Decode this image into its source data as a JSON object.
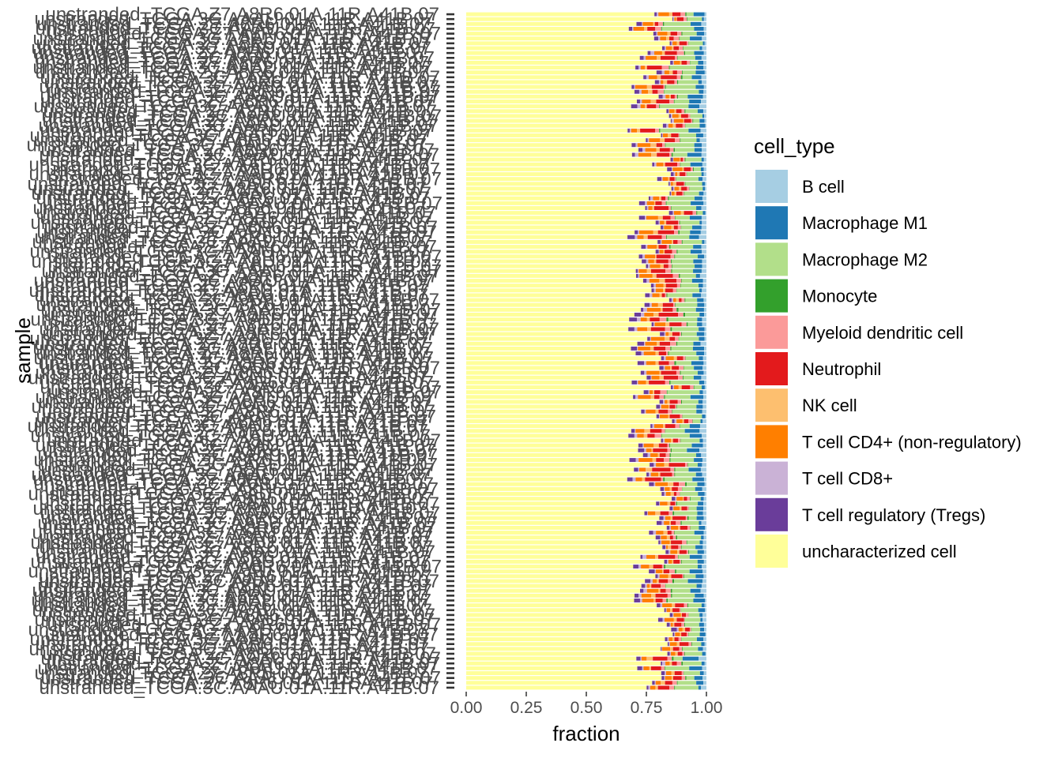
{
  "chart_data": {
    "type": "bar",
    "orientation": "horizontal",
    "stacked": true,
    "xlabel": "fraction",
    "ylabel": "sample",
    "xlim": [
      0,
      1
    ],
    "x_ticks": [
      "0.00",
      "0.25",
      "0.50",
      "0.75",
      "1.00"
    ],
    "y_tick_labels_visible": [
      "unstranded_TCGA.Z7.A8R6.01A.11R.A41B.07",
      "unstranded_TCGA.3C.AAAU.01A.11R.A41B.07"
    ],
    "sample_count": 140,
    "sample_note": "~140 samples; individual sample labels overlap and are illegible except the first and last",
    "legend": {
      "title": "cell_type",
      "position": "right",
      "entries": [
        {
          "label": "B cell",
          "color": "#A6CEE3"
        },
        {
          "label": "Macrophage M1",
          "color": "#1F78B4"
        },
        {
          "label": "Macrophage M2",
          "color": "#B2DF8A"
        },
        {
          "label": "Monocyte",
          "color": "#33A02C"
        },
        {
          "label": "Myeloid dendritic cell",
          "color": "#FB9A99"
        },
        {
          "label": "Neutrophil",
          "color": "#E31A1C"
        },
        {
          "label": "NK cell",
          "color": "#FDBF6F"
        },
        {
          "label": "T cell CD4+ (non-regulatory)",
          "color": "#FF7F00"
        },
        {
          "label": "T cell CD8+",
          "color": "#CAB2D6"
        },
        {
          "label": "T cell regulatory (Tregs)",
          "color": "#6A3D9A"
        },
        {
          "label": "uncharacterized cell",
          "color": "#FFFF99"
        }
      ]
    },
    "series_order_left_to_right": [
      "uncharacterized cell",
      "T cell regulatory (Tregs)",
      "T cell CD8+",
      "T cell CD4+ (non-regulatory)",
      "NK cell",
      "Neutrophil",
      "Myeloid dendritic cell",
      "Monocyte",
      "Macrophage M2",
      "Macrophage M1",
      "B cell"
    ],
    "typical_fractions": {
      "uncharacterized cell": 0.8,
      "T cell regulatory (Tregs)": 0.012,
      "T cell CD8+": 0.006,
      "T cell CD4+ (non-regulatory)": 0.025,
      "NK cell": 0.01,
      "Neutrophil": 0.03,
      "Myeloid dendritic cell": 0.012,
      "Monocyte": 0.003,
      "Macrophage M2": 0.06,
      "Macrophage M1": 0.025,
      "B cell": 0.012
    },
    "uncharacterized_range": [
      0.67,
      0.86
    ],
    "grid": false
  }
}
